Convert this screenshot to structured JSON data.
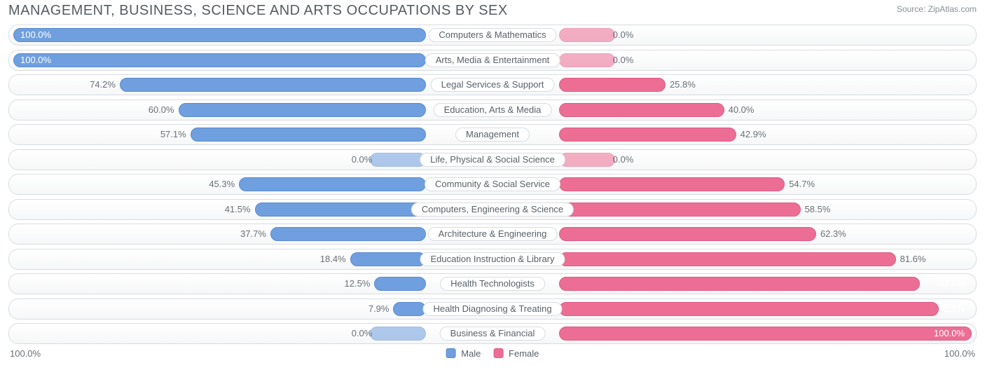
{
  "chart": {
    "title": "MANAGEMENT, BUSINESS, SCIENCE AND ARTS OCCUPATIONS BY SEX",
    "source_label": "Source:",
    "source_name": "ZipAtlas.com",
    "type": "diverging-bar",
    "colors": {
      "male_fill": "#6f9fde",
      "male_border": "#5a8bd0",
      "female_fill": "#ec6e95",
      "female_border": "#e05a84",
      "row_border": "#d8dce0",
      "text": "#6a7075",
      "bg": "#ffffff"
    },
    "axis": {
      "left": "100.0%",
      "right": "100.0%"
    },
    "legend": {
      "male": "Male",
      "female": "Female"
    },
    "label_half_width": 95,
    "rows": [
      {
        "category": "Computers & Mathematics",
        "male": 100.0,
        "female": 0.0,
        "female_zero": true
      },
      {
        "category": "Arts, Media & Entertainment",
        "male": 100.0,
        "female": 0.0,
        "female_zero": true
      },
      {
        "category": "Legal Services & Support",
        "male": 74.2,
        "female": 25.8
      },
      {
        "category": "Education, Arts & Media",
        "male": 60.0,
        "female": 40.0
      },
      {
        "category": "Management",
        "male": 57.1,
        "female": 42.9
      },
      {
        "category": "Life, Physical & Social Science",
        "male": 0.0,
        "female": 0.0,
        "male_zero": true,
        "female_zero": true
      },
      {
        "category": "Community & Social Service",
        "male": 45.3,
        "female": 54.7
      },
      {
        "category": "Computers, Engineering & Science",
        "male": 41.5,
        "female": 58.5
      },
      {
        "category": "Architecture & Engineering",
        "male": 37.7,
        "female": 62.3
      },
      {
        "category": "Education Instruction & Library",
        "male": 18.4,
        "female": 81.6
      },
      {
        "category": "Health Technologists",
        "male": 12.5,
        "female": 87.5
      },
      {
        "category": "Health Diagnosing & Treating",
        "male": 7.9,
        "female": 92.1
      },
      {
        "category": "Business & Financial",
        "male": 0.0,
        "female": 100.0,
        "male_zero": true
      }
    ]
  }
}
